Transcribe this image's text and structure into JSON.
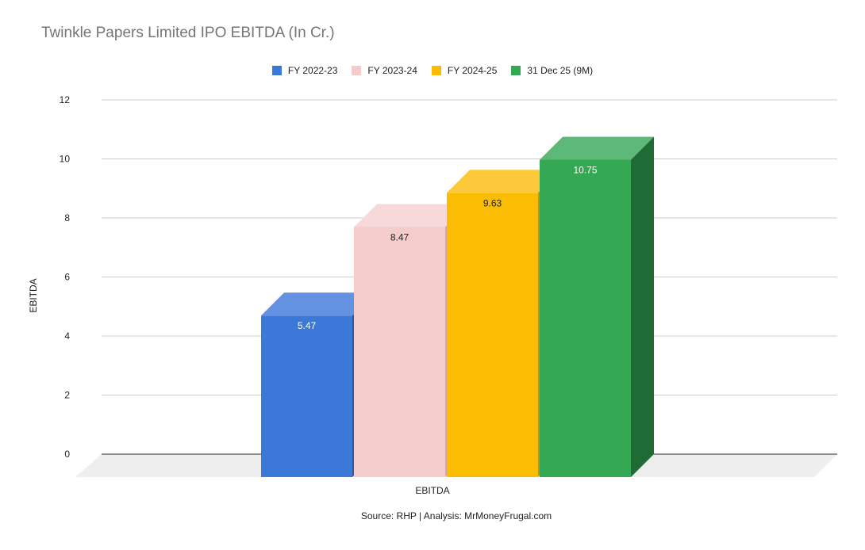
{
  "chart_data": {
    "type": "bar",
    "title": "Twinkle Papers Limited IPO EBITDA (In Cr.)",
    "categories": [
      "EBITDA"
    ],
    "series": [
      {
        "name": "FY 2022-23",
        "values": [
          5.47
        ],
        "color": "#3c78d8",
        "top_color": "#6492e3",
        "side_color": "#2d5aa2"
      },
      {
        "name": "FY 2023-24",
        "values": [
          8.47
        ],
        "color": "#f4cccc",
        "top_color": "#f7d9d9",
        "side_color": "#d8a8a8"
      },
      {
        "name": "FY 2024-25",
        "values": [
          9.63
        ],
        "color": "#fbbc04",
        "top_color": "#fbc93a",
        "side_color": "#c79403"
      },
      {
        "name": "31 Dec 25 (9M)",
        "values": [
          10.75
        ],
        "color": "#34a853",
        "top_color": "#5cb977",
        "side_color": "#1f6b35"
      }
    ],
    "data_labels": [
      "5.47",
      "8.47",
      "9.63",
      "10.75"
    ],
    "ylabel": "EBITDA",
    "xlabel": "EBITDA",
    "ylim": [
      0,
      12
    ],
    "yticks": [
      "0",
      "2",
      "4",
      "6",
      "8",
      "10",
      "12"
    ],
    "grid": true,
    "legend_position": "top",
    "source": "Source: RHP | Analysis: MrMoneyFrugal.com"
  }
}
